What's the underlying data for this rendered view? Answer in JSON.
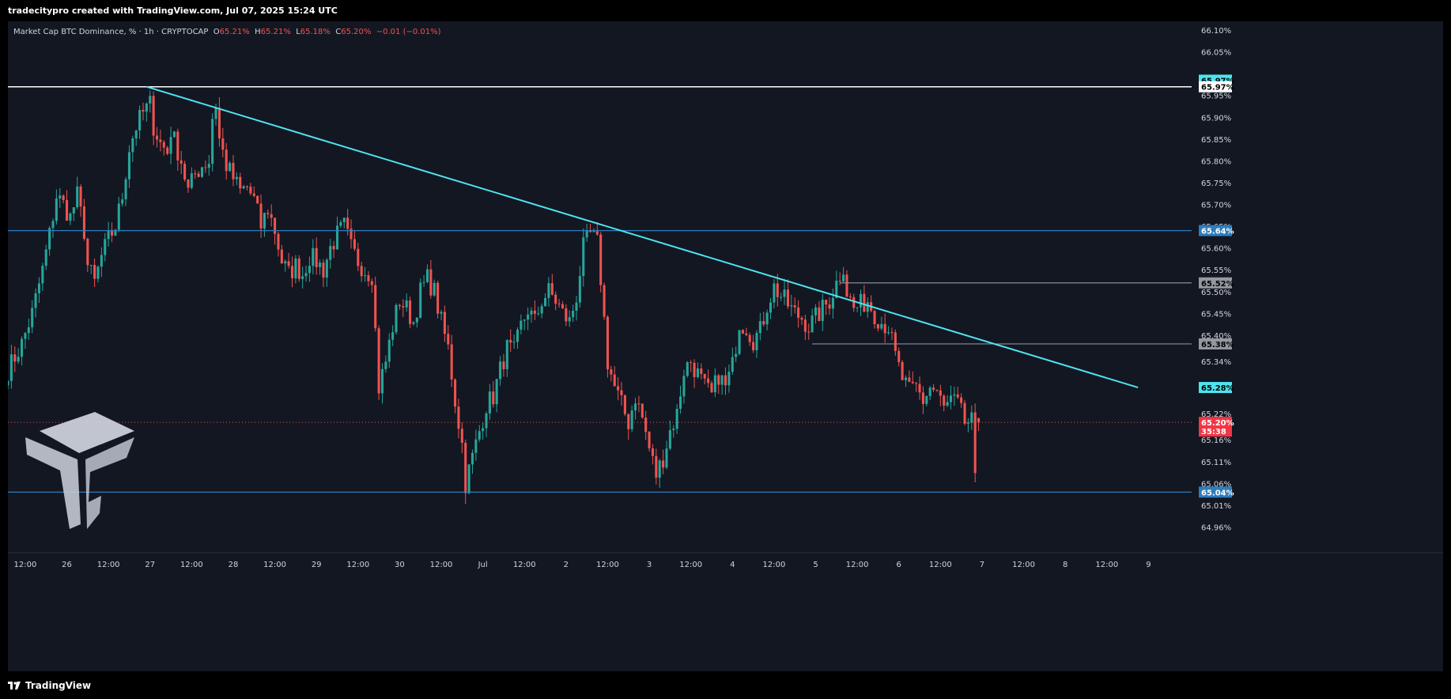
{
  "header": {
    "attribution": "tradecitypro created with TradingView.com, Jul 07, 2025 15:24 UTC"
  },
  "footer": {
    "brand": "TradingView"
  },
  "legend": {
    "symbol": "Market Cap BTC Dominance, % · 1h · CRYPTOCAP",
    "o_label": "O",
    "o_value": "65.21%",
    "h_label": "H",
    "h_value": "65.21%",
    "l_label": "L",
    "l_value": "65.18%",
    "c_label": "C",
    "c_value": "65.20%",
    "change": "−0.01 (−0.01%)"
  },
  "colors": {
    "background": "#131722",
    "up": "#26a69a",
    "down": "#ef5350",
    "trendline": "#4ee4ee",
    "level": "#2e7dbd",
    "resistance_top": "#ffffff",
    "gray_level": "#8a8e99",
    "grid": "#1e222d"
  },
  "chart_data": {
    "type": "candlestick",
    "ylim": [
      64.93,
      66.12
    ],
    "y_ticks": [
      "66.10%",
      "66.05%",
      "65.95%",
      "65.90%",
      "65.85%",
      "65.80%",
      "65.75%",
      "65.70%",
      "65.65%",
      "65.60%",
      "65.55%",
      "65.50%",
      "65.45%",
      "65.40%",
      "65.34%",
      "65.22%",
      "65.16%",
      "65.11%",
      "65.06%",
      "65.01%",
      "64.96%"
    ],
    "y_tick_values": [
      66.1,
      66.05,
      65.95,
      65.9,
      65.85,
      65.8,
      65.75,
      65.7,
      65.65,
      65.6,
      65.55,
      65.5,
      65.45,
      65.4,
      65.34,
      65.22,
      65.16,
      65.11,
      65.06,
      65.01,
      64.96
    ],
    "x_ticks": [
      "12:00",
      "26",
      "12:00",
      "27",
      "12:00",
      "28",
      "12:00",
      "29",
      "12:00",
      "30",
      "12:00",
      "Jul",
      "12:00",
      "2",
      "12:00",
      "3",
      "12:00",
      "4",
      "12:00",
      "5",
      "12:00",
      "6",
      "12:00",
      "7",
      "12:00",
      "8",
      "12:00",
      "9"
    ],
    "x_range_hours": [
      -17,
      324
    ],
    "x_tick_hours": [
      -12,
      0,
      12,
      24,
      36,
      48,
      60,
      72,
      84,
      96,
      108,
      120,
      132,
      144,
      156,
      168,
      180,
      192,
      204,
      216,
      228,
      240,
      252,
      264,
      276,
      288,
      300,
      312
    ],
    "price_badges": [
      {
        "label": "65.97%",
        "value": 65.985,
        "style": "cyan"
      },
      {
        "label": "65.97%",
        "value": 65.97,
        "style": "white"
      },
      {
        "label": "65.64%",
        "value": 65.64,
        "style": "blue"
      },
      {
        "label": "65.52%",
        "value": 65.52,
        "style": "gray"
      },
      {
        "label": "65.38%",
        "value": 65.38,
        "style": "gray"
      },
      {
        "label": "65.28%",
        "value": 65.28,
        "style": "cyan"
      },
      {
        "label": "65.20%",
        "value": 65.2,
        "style": "red"
      },
      {
        "label": "35:38",
        "value": 65.18,
        "style": "red"
      },
      {
        "label": "65.04%",
        "value": 65.04,
        "style": "blue"
      }
    ],
    "horizontal_levels": [
      {
        "value": 65.97,
        "kind": "white"
      },
      {
        "value": 65.64,
        "kind": "blue"
      },
      {
        "value": 65.04,
        "kind": "blue"
      },
      {
        "value": 65.52,
        "kind": "gray",
        "from_hour": 223
      },
      {
        "value": 65.38,
        "kind": "gray",
        "from_hour": 215
      }
    ],
    "trendline": {
      "from": [
        23,
        65.97
      ],
      "to": [
        309,
        65.28
      ]
    },
    "last_price": 65.2,
    "waypoints": [
      [
        -17,
        65.32
      ],
      [
        -13,
        65.38
      ],
      [
        -10,
        65.45
      ],
      [
        -7,
        65.55
      ],
      [
        -5,
        65.63
      ],
      [
        -3,
        65.72
      ],
      [
        -1,
        65.7
      ],
      [
        1,
        65.67
      ],
      [
        3,
        65.72
      ],
      [
        5,
        65.64
      ],
      [
        6,
        65.56
      ],
      [
        8,
        65.52
      ],
      [
        10,
        65.58
      ],
      [
        12,
        65.62
      ],
      [
        14,
        65.65
      ],
      [
        16,
        65.72
      ],
      [
        18,
        65.83
      ],
      [
        20,
        65.88
      ],
      [
        22,
        65.91
      ],
      [
        24,
        65.93
      ],
      [
        25,
        65.88
      ],
      [
        27,
        65.84
      ],
      [
        29,
        65.82
      ],
      [
        30,
        65.87
      ],
      [
        33,
        65.8
      ],
      [
        35,
        65.73
      ],
      [
        37,
        65.77
      ],
      [
        39,
        65.79
      ],
      [
        41,
        65.8
      ],
      [
        42,
        65.9
      ],
      [
        43,
        65.93
      ],
      [
        44,
        65.85
      ],
      [
        46,
        65.79
      ],
      [
        48,
        65.76
      ],
      [
        50,
        65.73
      ],
      [
        52,
        65.74
      ],
      [
        54,
        65.71
      ],
      [
        56,
        65.65
      ],
      [
        58,
        65.69
      ],
      [
        60,
        65.64
      ],
      [
        62,
        65.57
      ],
      [
        64,
        65.54
      ],
      [
        66,
        65.56
      ],
      [
        68,
        65.54
      ],
      [
        70,
        65.58
      ],
      [
        72,
        65.57
      ],
      [
        74,
        65.55
      ],
      [
        76,
        65.6
      ],
      [
        78,
        65.63
      ],
      [
        80,
        65.65
      ],
      [
        82,
        65.6
      ],
      [
        84,
        65.57
      ],
      [
        86,
        65.55
      ],
      [
        88,
        65.54
      ],
      [
        90,
        65.28
      ],
      [
        92,
        65.34
      ],
      [
        94,
        65.42
      ],
      [
        96,
        65.48
      ],
      [
        98,
        65.46
      ],
      [
        100,
        65.43
      ],
      [
        102,
        65.5
      ],
      [
        104,
        65.53
      ],
      [
        106,
        65.5
      ],
      [
        108,
        65.43
      ],
      [
        110,
        65.37
      ],
      [
        112,
        65.25
      ],
      [
        114,
        65.15
      ],
      [
        115,
        65.06
      ],
      [
        117,
        65.12
      ],
      [
        119,
        65.18
      ],
      [
        121,
        65.24
      ],
      [
        123,
        65.26
      ],
      [
        125,
        65.32
      ],
      [
        127,
        65.37
      ],
      [
        129,
        65.36
      ],
      [
        131,
        65.42
      ],
      [
        133,
        65.46
      ],
      [
        135,
        65.43
      ],
      [
        137,
        65.48
      ],
      [
        139,
        65.5
      ],
      [
        141,
        65.48
      ],
      [
        143,
        65.45
      ],
      [
        145,
        65.43
      ],
      [
        147,
        65.49
      ],
      [
        149,
        65.6
      ],
      [
        151,
        65.63
      ],
      [
        153,
        65.61
      ],
      [
        154,
        65.53
      ],
      [
        156,
        65.34
      ],
      [
        158,
        65.28
      ],
      [
        160,
        65.24
      ],
      [
        162,
        65.2
      ],
      [
        164,
        65.26
      ],
      [
        166,
        65.21
      ],
      [
        168,
        65.14
      ],
      [
        170,
        65.08
      ],
      [
        172,
        65.12
      ],
      [
        174,
        65.18
      ],
      [
        176,
        65.22
      ],
      [
        178,
        65.32
      ],
      [
        180,
        65.34
      ],
      [
        182,
        65.31
      ],
      [
        184,
        65.28
      ],
      [
        186,
        65.26
      ],
      [
        188,
        65.31
      ],
      [
        190,
        65.28
      ],
      [
        192,
        65.33
      ],
      [
        194,
        65.43
      ],
      [
        196,
        65.42
      ],
      [
        198,
        65.39
      ],
      [
        200,
        65.41
      ],
      [
        202,
        65.47
      ],
      [
        204,
        65.51
      ],
      [
        206,
        65.49
      ],
      [
        208,
        65.47
      ],
      [
        210,
        65.45
      ],
      [
        212,
        65.44
      ],
      [
        214,
        65.42
      ],
      [
        216,
        65.44
      ],
      [
        218,
        65.46
      ],
      [
        220,
        65.48
      ],
      [
        222,
        65.52
      ],
      [
        224,
        65.56
      ],
      [
        225,
        65.5
      ],
      [
        227,
        65.46
      ],
      [
        229,
        65.47
      ],
      [
        231,
        65.48
      ],
      [
        233,
        65.45
      ],
      [
        235,
        65.43
      ],
      [
        237,
        65.42
      ],
      [
        239,
        65.35
      ],
      [
        241,
        65.3
      ],
      [
        243,
        65.27
      ],
      [
        245,
        65.28
      ],
      [
        247,
        65.25
      ],
      [
        249,
        65.28
      ],
      [
        251,
        65.27
      ],
      [
        253,
        65.23
      ],
      [
        255,
        65.25
      ],
      [
        257,
        65.24
      ],
      [
        259,
        65.2
      ],
      [
        261,
        65.2
      ],
      [
        262,
        65.06
      ],
      [
        263,
        65.2
      ]
    ]
  }
}
